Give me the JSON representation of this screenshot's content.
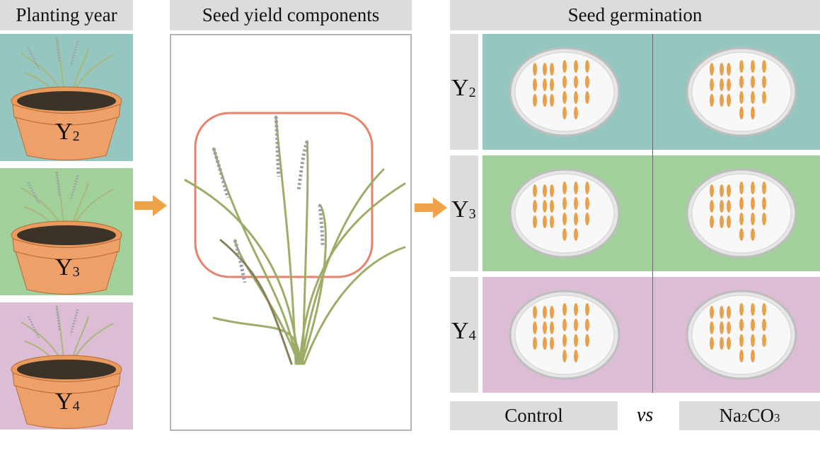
{
  "planting": {
    "title": "Planting year",
    "pots": [
      {
        "label": "Y",
        "sub": "2",
        "color": "#96c6c0"
      },
      {
        "label": "Y",
        "sub": "3",
        "color": "#a1d09a"
      },
      {
        "label": "Y",
        "sub": "4",
        "color": "#dcbdd5"
      }
    ]
  },
  "yield": {
    "title": "Seed yield components",
    "highlight_color": "#e8826a"
  },
  "germination": {
    "title": "Seed germination",
    "rows": [
      {
        "label": "Y",
        "sub": "2",
        "color": "#96c6c0"
      },
      {
        "label": "Y",
        "sub": "3",
        "color": "#a1d09a"
      },
      {
        "label": "Y",
        "sub": "4",
        "color": "#dcbdd5"
      }
    ],
    "control_label": "Control",
    "vs_label": "vs",
    "treatment_label": "Na",
    "treatment_sub1": "2",
    "treatment_mid": "CO",
    "treatment_sub2": "3"
  },
  "arrow_color": "#f0a24a"
}
